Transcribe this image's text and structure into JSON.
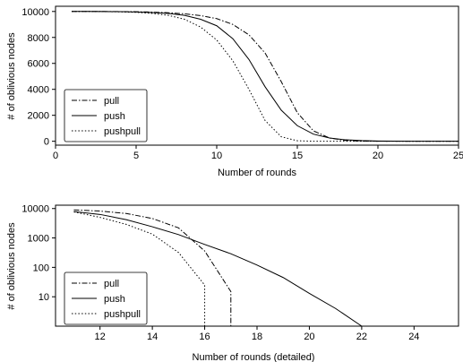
{
  "chart_data": [
    {
      "type": "line",
      "xlabel": "Number of rounds",
      "ylabel": "# of oblivious nodes",
      "xlim": [
        0,
        25
      ],
      "ylim": [
        -300,
        10400
      ],
      "yscale": "linear",
      "xticks": [
        0,
        5,
        10,
        15,
        20,
        25
      ],
      "yticks": [
        0,
        2000,
        4000,
        6000,
        8000,
        10000
      ],
      "grid": false,
      "legend_placement": "bottom-left",
      "series": [
        {
          "name": "pull",
          "style": "dashdot",
          "x": [
            1,
            2,
            3,
            4,
            5,
            6,
            7,
            8,
            9,
            10,
            11,
            12,
            13,
            14,
            15,
            16,
            17,
            18,
            19,
            20,
            21,
            22,
            23,
            24,
            25
          ],
          "y": [
            10000,
            10000,
            10000,
            9990,
            9980,
            9950,
            9900,
            9820,
            9680,
            9450,
            9000,
            8200,
            6800,
            4600,
            2200,
            800,
            250,
            60,
            15,
            4,
            1,
            0,
            0,
            0,
            0
          ]
        },
        {
          "name": "push",
          "style": "solid",
          "x": [
            1,
            2,
            3,
            4,
            5,
            6,
            7,
            8,
            9,
            10,
            11,
            12,
            13,
            14,
            15,
            16,
            17,
            18,
            19,
            20,
            21,
            22,
            23,
            24,
            25
          ],
          "y": [
            10000,
            10000,
            9995,
            9985,
            9960,
            9920,
            9850,
            9700,
            9400,
            8900,
            7900,
            6300,
            4200,
            2400,
            1200,
            550,
            250,
            110,
            50,
            20,
            8,
            3,
            1,
            0,
            0
          ]
        },
        {
          "name": "pushpull",
          "style": "dotted",
          "x": [
            1,
            2,
            3,
            4,
            5,
            6,
            7,
            8,
            9,
            10,
            11,
            12,
            13,
            14,
            15,
            16,
            17,
            18,
            19,
            20,
            21,
            22,
            23,
            24,
            25
          ],
          "y": [
            10000,
            10000,
            9990,
            9970,
            9930,
            9850,
            9700,
            9400,
            8800,
            7800,
            6200,
            4000,
            1600,
            350,
            40,
            2,
            0,
            0,
            0,
            0,
            0,
            0,
            0,
            0,
            0
          ]
        }
      ]
    },
    {
      "type": "line",
      "xlabel": "Number of rounds (detailed)",
      "ylabel": "# of oblivious nodes",
      "xlim": [
        10.3,
        25.7
      ],
      "ylim": [
        1,
        13000
      ],
      "yscale": "log",
      "xticks": [
        12,
        14,
        16,
        18,
        20,
        22,
        24
      ],
      "yticks": [
        10,
        100,
        1000,
        10000
      ],
      "ytick_labels": [
        "10",
        "100",
        "1000",
        "10000"
      ],
      "grid": false,
      "legend_placement": "bottom-left",
      "series": [
        {
          "name": "pull",
          "style": "dashdot",
          "x": [
            11,
            12,
            13,
            14,
            15,
            16,
            17,
            17
          ],
          "y": [
            9000,
            8200,
            6800,
            4600,
            2200,
            360,
            15,
            1
          ]
        },
        {
          "name": "push",
          "style": "solid",
          "x": [
            11,
            12,
            13,
            14,
            15,
            16,
            17,
            18,
            19,
            20,
            21,
            22
          ],
          "y": [
            7900,
            6300,
            4200,
            2400,
            1300,
            600,
            290,
            120,
            45,
            13,
            4,
            1
          ]
        },
        {
          "name": "pushpull",
          "style": "dotted",
          "x": [
            11,
            12,
            13,
            14,
            15,
            16,
            16
          ],
          "y": [
            7700,
            5000,
            2900,
            1350,
            320,
            25,
            1
          ]
        }
      ]
    }
  ]
}
